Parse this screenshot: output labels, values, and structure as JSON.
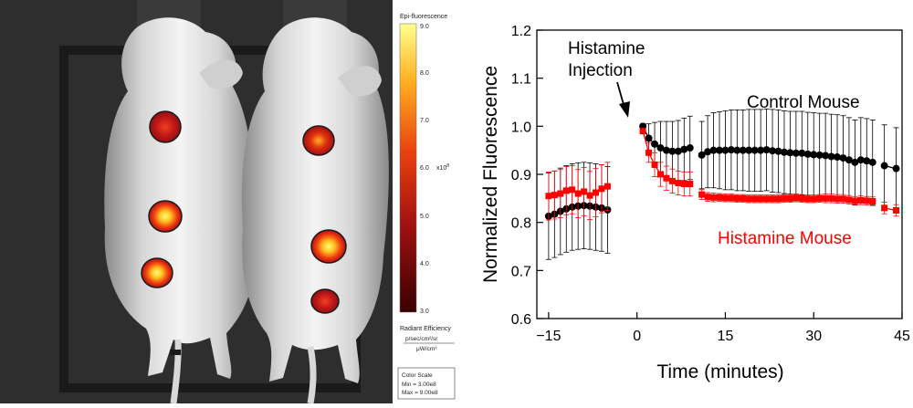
{
  "image_panel": {
    "colorbar_title": "Epi-fluorescence",
    "colorbar_ticks": [
      "9.0",
      "8.0",
      "7.0",
      "6.0",
      "5.0",
      "4.0",
      "3.0"
    ],
    "colorbar_exponent": "x10",
    "colorbar_exponent_power": "8",
    "units_title": "Radiant Efficiency",
    "units_numerator": "p/sec/cm²/sr",
    "units_denominator": "μW/cm²",
    "color_scale_title": "Color Scale",
    "color_scale_min": "Min = 3.00e8",
    "color_scale_max": "Max = 9.00e8",
    "colors": {
      "background": "#2e2e2e",
      "hot_low": "#b01818",
      "hot_high": "#ffff40"
    }
  },
  "chart_data": {
    "type": "scatter",
    "xlabel": "Time (minutes)",
    "ylabel": "Normalized Fluorescence",
    "xlim": [
      -17,
      45
    ],
    "ylim": [
      0.6,
      1.2
    ],
    "xticks": [
      -15,
      0,
      15,
      30,
      45
    ],
    "yticks": [
      0.6,
      0.7,
      0.8,
      0.9,
      1.0,
      1.1,
      1.2
    ],
    "ytick_labels": [
      "0.6",
      "0.7",
      "0.8",
      "0.9",
      "1.0",
      "1.1",
      "1.2"
    ],
    "annotation": {
      "line1": "Histamine",
      "line2": "Injection",
      "arrow_to": [
        0,
        1.005
      ]
    },
    "series": [
      {
        "name": "Control Mouse",
        "color": "#000000",
        "segments": [
          {
            "x": [
              -15,
              -14,
              -13,
              -12,
              -11,
              -10,
              -9,
              -8,
              -7,
              -6,
              -5
            ],
            "y": [
              0.813,
              0.817,
              0.823,
              0.828,
              0.832,
              0.834,
              0.835,
              0.834,
              0.832,
              0.83,
              0.826
            ],
            "err": [
              0.09,
              0.09,
              0.09,
              0.09,
              0.09,
              0.09,
              0.09,
              0.09,
              0.09,
              0.09,
              0.09
            ]
          },
          {
            "x": [
              1,
              2,
              3,
              4,
              5,
              6,
              7,
              8,
              9
            ],
            "y": [
              1.0,
              0.975,
              0.963,
              0.955,
              0.95,
              0.948,
              0.948,
              0.952,
              0.955
            ],
            "err": [
              0.005,
              0.03,
              0.045,
              0.055,
              0.06,
              0.062,
              0.064,
              0.065,
              0.066
            ]
          },
          {
            "x": [
              11,
              12,
              13,
              14,
              15,
              16,
              17,
              18,
              19,
              20,
              21,
              22,
              23,
              24,
              25,
              26,
              27,
              28,
              29,
              30,
              31,
              32,
              33,
              34,
              35,
              36,
              37,
              38,
              39,
              40
            ],
            "y": [
              0.94,
              0.947,
              0.95,
              0.95,
              0.95,
              0.951,
              0.95,
              0.95,
              0.95,
              0.95,
              0.95,
              0.951,
              0.949,
              0.948,
              0.946,
              0.945,
              0.944,
              0.944,
              0.942,
              0.941,
              0.94,
              0.939,
              0.937,
              0.936,
              0.934,
              0.93,
              0.925,
              0.93,
              0.928,
              0.925
            ],
            "err": [
              0.07,
              0.075,
              0.078,
              0.08,
              0.082,
              0.083,
              0.084,
              0.084,
              0.085,
              0.085,
              0.085,
              0.085,
              0.086,
              0.086,
              0.086,
              0.086,
              0.087,
              0.087,
              0.087,
              0.087,
              0.087,
              0.088,
              0.088,
              0.088,
              0.088,
              0.088,
              0.088,
              0.088,
              0.088,
              0.088
            ]
          },
          {
            "x": [
              42,
              44
            ],
            "y": [
              0.918,
              0.912
            ],
            "err": [
              0.085,
              0.085
            ]
          }
        ]
      },
      {
        "name": "Histamine Mouse",
        "color": "#ff0000",
        "segments": [
          {
            "x": [
              -15,
              -14,
              -13,
              -12,
              -11,
              -10,
              -9,
              -8,
              -7,
              -6,
              -5
            ],
            "y": [
              0.855,
              0.857,
              0.86,
              0.866,
              0.868,
              0.86,
              0.864,
              0.856,
              0.862,
              0.87,
              0.875
            ],
            "err": [
              0.05,
              0.05,
              0.05,
              0.05,
              0.05,
              0.05,
              0.05,
              0.05,
              0.05,
              0.05,
              0.05
            ]
          },
          {
            "x": [
              1,
              2,
              3,
              4,
              5,
              6,
              7,
              8,
              9
            ],
            "y": [
              0.99,
              0.945,
              0.92,
              0.9,
              0.892,
              0.886,
              0.882,
              0.88,
              0.88
            ],
            "err": [
              0.005,
              0.02,
              0.025,
              0.025,
              0.025,
              0.025,
              0.025,
              0.025,
              0.025
            ]
          },
          {
            "x": [
              11,
              12,
              13,
              14,
              15,
              16,
              17,
              18,
              19,
              20,
              21,
              22,
              23,
              24,
              25,
              26,
              27,
              28,
              29,
              30,
              31,
              32,
              33,
              34,
              35,
              36,
              37,
              38,
              39,
              40
            ],
            "y": [
              0.858,
              0.853,
              0.852,
              0.852,
              0.851,
              0.851,
              0.85,
              0.85,
              0.849,
              0.849,
              0.849,
              0.849,
              0.849,
              0.849,
              0.85,
              0.85,
              0.851,
              0.85,
              0.849,
              0.849,
              0.85,
              0.85,
              0.85,
              0.849,
              0.849,
              0.847,
              0.845,
              0.846,
              0.845,
              0.844
            ],
            "err": [
              0.01,
              0.009,
              0.009,
              0.008,
              0.008,
              0.008,
              0.008,
              0.008,
              0.008,
              0.008,
              0.008,
              0.008,
              0.008,
              0.008,
              0.008,
              0.008,
              0.008,
              0.008,
              0.008,
              0.008,
              0.008,
              0.009,
              0.009,
              0.009,
              0.009,
              0.009,
              0.009,
              0.009,
              0.009,
              0.009
            ]
          },
          {
            "x": [
              42,
              44
            ],
            "y": [
              0.83,
              0.825
            ],
            "err": [
              0.012,
              0.012
            ]
          }
        ]
      }
    ]
  }
}
